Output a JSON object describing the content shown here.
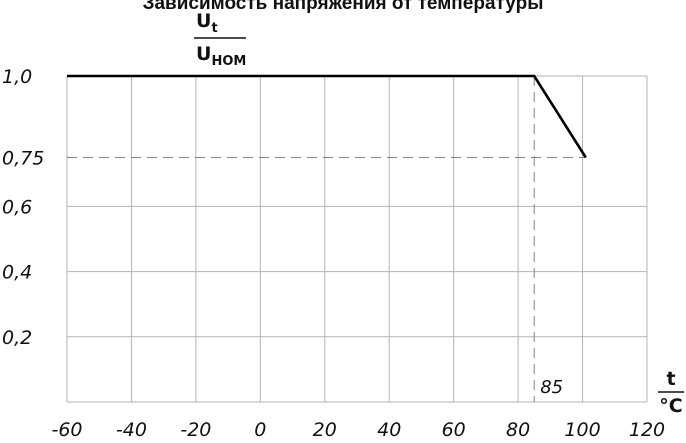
{
  "chart_data": {
    "type": "line",
    "title": "Зависимость напряжения от температуры",
    "ylabel": {
      "numerator_main": "U",
      "numerator_sub": "t",
      "denominator_main": "U",
      "denominator_sub": "НОМ"
    },
    "xlabel": {
      "numerator": "t",
      "denominator": "°C"
    },
    "xlim": [
      -60,
      120
    ],
    "ylim": [
      0,
      1.0
    ],
    "x_ticks": [
      -60,
      -40,
      -20,
      0,
      20,
      40,
      60,
      80,
      100,
      120
    ],
    "x_tick_labels": [
      "-60",
      "-40",
      "-20",
      "0",
      "20",
      "40",
      "60",
      "80",
      "100",
      "120"
    ],
    "y_ticks": [
      0.2,
      0.4,
      0.6,
      0.75,
      1.0
    ],
    "y_tick_labels": [
      "0,2",
      "0,4",
      "0,6",
      "0,75",
      "1,0"
    ],
    "grid": true,
    "series": [
      {
        "x": [
          -60,
          85,
          101
        ],
        "y": [
          1.0,
          1.0,
          0.75
        ]
      }
    ],
    "reference_lines": {
      "horizontal_y": 0.75,
      "vertical_x": 85,
      "vertical_label": "85"
    }
  }
}
